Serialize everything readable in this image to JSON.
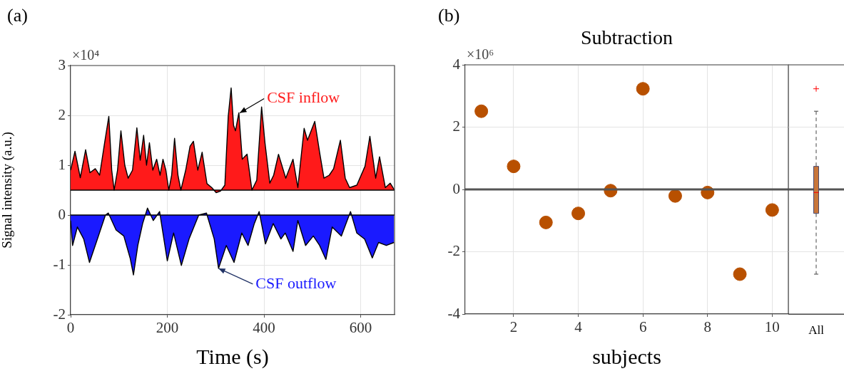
{
  "chart_data": [
    {
      "type": "area",
      "xlabel": "Time (s)",
      "ylabel": "Signal intensity (a.u.)",
      "xlim": [
        0,
        670
      ],
      "xticks": [
        0,
        200,
        400,
        600
      ],
      "ylim": [
        -2,
        3
      ],
      "yticks": [
        -2,
        -1,
        0,
        1,
        2,
        3
      ],
      "grid": true,
      "annotations": [
        "(a)",
        "×10⁴",
        {
          "text": "CSF inflow",
          "x": 350,
          "y": 2.05
        },
        {
          "text": "CSF outflow",
          "x": 306,
          "y": -1.07
        }
      ],
      "ref_lines": [
        {
          "axis": "y",
          "value": 0.5,
          "color": "#000000"
        },
        {
          "axis": "y",
          "value": 0,
          "color": "#000000"
        }
      ],
      "series": [
        {
          "color": "#ff1a1a",
          "x": [
            0,
            9,
            20,
            31,
            40,
            51,
            60,
            70,
            79,
            85,
            90,
            97,
            104,
            112,
            119,
            128,
            137,
            144,
            151,
            157,
            163,
            170,
            178,
            185,
            191,
            197,
            203,
            209,
            215,
            222,
            228,
            238,
            247,
            254,
            263,
            272,
            282,
            292,
            301,
            310,
            319,
            326,
            332,
            337,
            341,
            348,
            355,
            365,
            375,
            385,
            395,
            402,
            412,
            420,
            430,
            445,
            460,
            470,
            483,
            490,
            505,
            515,
            524,
            535,
            544,
            558,
            568,
            577,
            592,
            609,
            619,
            631,
            639,
            651,
            661,
            670
          ],
          "values": [
            0.9,
            1.28,
            0.75,
            1.31,
            0.85,
            0.93,
            0.8,
            1.43,
            1.98,
            0.9,
            0.5,
            0.9,
            1.69,
            1.0,
            0.74,
            0.9,
            1.75,
            1.1,
            1.6,
            1.0,
            1.45,
            0.9,
            1.12,
            0.8,
            1.12,
            0.9,
            0.5,
            0.8,
            1.54,
            0.8,
            0.5,
            0.9,
            1.38,
            1.48,
            0.9,
            1.26,
            0.63,
            0.55,
            0.45,
            0.48,
            0.6,
            1.98,
            2.55,
            1.8,
            1.69,
            2.05,
            1.12,
            1.22,
            0.5,
            0.7,
            2.17,
            1.45,
            0.64,
            0.8,
            1.22,
            0.74,
            1.12,
            0.55,
            1.74,
            1.5,
            1.88,
            1.26,
            0.74,
            0.8,
            0.93,
            1.5,
            0.74,
            0.55,
            0.6,
            0.98,
            1.58,
            0.74,
            1.17,
            0.55,
            0.64,
            0.5
          ]
        },
        {
          "color": "#1a1aff",
          "x": [
            0,
            4,
            14,
            27,
            39,
            53,
            72,
            78,
            94,
            110,
            123,
            130,
            139,
            149,
            159,
            171,
            184,
            200,
            213,
            229,
            245,
            265,
            281,
            297,
            306,
            322,
            338,
            354,
            367,
            380,
            390,
            403,
            419,
            435,
            444,
            460,
            470,
            486,
            502,
            515,
            528,
            541,
            560,
            579,
            592,
            608,
            624,
            637,
            653,
            669
          ],
          "values": [
            -0.11,
            -0.61,
            -0.24,
            -0.48,
            -0.95,
            -0.55,
            0,
            0.04,
            -0.3,
            -0.42,
            -0.86,
            -1.2,
            -0.61,
            -0.17,
            0.14,
            -0.11,
            0.07,
            -0.92,
            -0.36,
            -1.01,
            -0.48,
            0,
            0.04,
            -0.48,
            -1.07,
            -0.61,
            -0.95,
            -0.36,
            -0.61,
            -0.17,
            0.07,
            -0.58,
            -0.17,
            -0.48,
            -0.36,
            -0.73,
            -0.11,
            -0.61,
            -0.42,
            -0.61,
            -0.89,
            -0.24,
            -0.42,
            0.07,
            -0.36,
            -0.48,
            -0.86,
            -0.55,
            -0.61,
            -0.55
          ]
        }
      ]
    },
    {
      "type": "scatter",
      "title": "Subtraction",
      "xlabel": "subjects",
      "xlim": [
        0.5,
        10.5
      ],
      "xticks": [
        2,
        4,
        6,
        8,
        10
      ],
      "ylim": [
        -4,
        4
      ],
      "yticks": [
        -4,
        -2,
        0,
        2,
        4
      ],
      "grid": true,
      "marker": "circle",
      "annotations": [
        "(b)",
        "×10⁶"
      ],
      "ref_lines": [
        {
          "axis": "y",
          "value": 0,
          "color": "#555555"
        }
      ],
      "series": [
        {
          "color": "#b85000",
          "x": [
            1,
            2,
            3,
            4,
            5,
            6,
            7,
            8,
            9,
            10
          ],
          "values": [
            2.51,
            0.74,
            -1.06,
            -0.77,
            -0.04,
            3.23,
            -0.21,
            -0.1,
            -2.72,
            -0.66
          ]
        }
      ]
    },
    {
      "type": "box",
      "categories": [
        "All"
      ],
      "ylim": [
        -4,
        4
      ],
      "yticks": [
        -4,
        -2,
        0,
        2,
        4
      ],
      "grid": "y",
      "tick_labels": "x",
      "ref_lines": [
        {
          "axis": "y",
          "value": 0,
          "color": "#555555"
        }
      ],
      "series": [
        {
          "color": "#c8763a",
          "boxes": [
            {
              "low": -2.72,
              "q1": -0.77,
              "median": -0.1,
              "q3": 0.74,
              "high": 2.51,
              "outliers": [
                3.23
              ]
            }
          ]
        }
      ]
    }
  ]
}
